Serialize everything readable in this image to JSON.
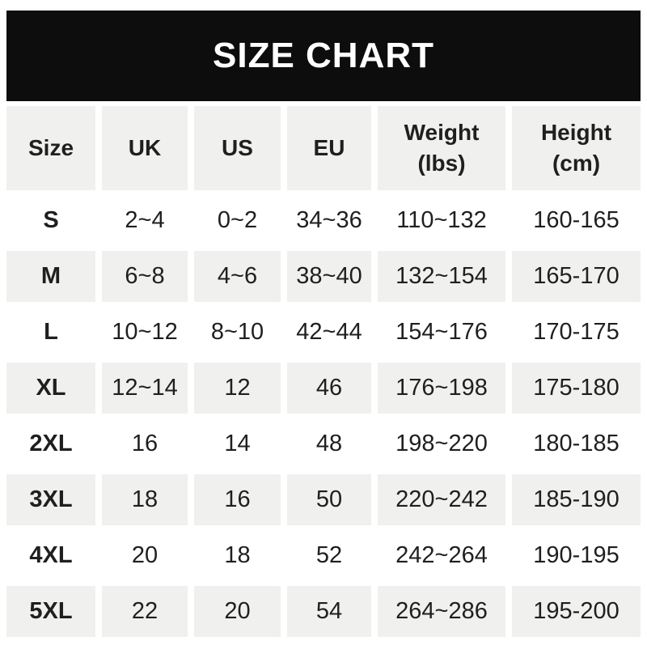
{
  "banner": {
    "title": "SIZE CHART"
  },
  "colors": {
    "banner_bg": "#0d0d0d",
    "banner_text": "#ffffff",
    "stripe_bg": "#f0f0ef",
    "text": "#1f1f1f",
    "page_bg": "#ffffff"
  },
  "chart_data": {
    "type": "table",
    "title": "SIZE CHART",
    "columns": [
      "Size",
      "UK",
      "US",
      "EU",
      "Weight\n(lbs)",
      "Height\n(cm)"
    ],
    "rows": [
      [
        "S",
        "2~4",
        "0~2",
        "34~36",
        "110~132",
        "160-165"
      ],
      [
        "M",
        "6~8",
        "4~6",
        "38~40",
        "132~154",
        "165-170"
      ],
      [
        "L",
        "10~12",
        "8~10",
        "42~44",
        "154~176",
        "170-175"
      ],
      [
        "XL",
        "12~14",
        "12",
        "46",
        "176~198",
        "175-180"
      ],
      [
        "2XL",
        "16",
        "14",
        "48",
        "198~220",
        "180-185"
      ],
      [
        "3XL",
        "18",
        "16",
        "50",
        "220~242",
        "185-190"
      ],
      [
        "4XL",
        "20",
        "18",
        "52",
        "242~264",
        "190-195"
      ],
      [
        "5XL",
        "22",
        "20",
        "54",
        "264~286",
        "195-200"
      ]
    ],
    "layout": {
      "header_background": "#f0f0ef",
      "striped": true,
      "stripe_pattern": "white, gray alternating under gray header",
      "grid": "white gaps between cells"
    }
  }
}
